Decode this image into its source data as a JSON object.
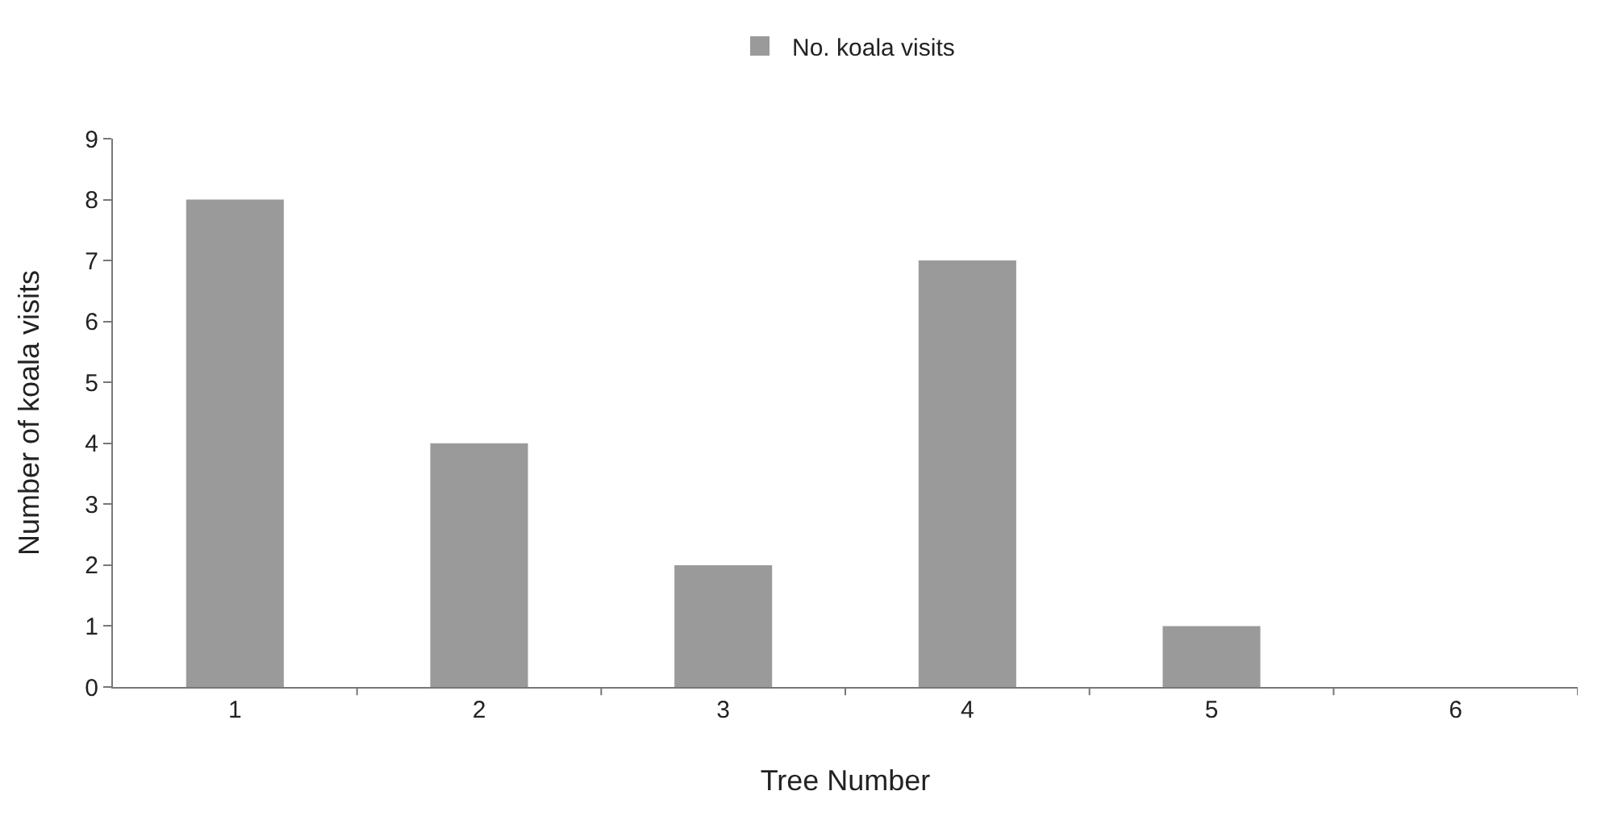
{
  "chart_data": {
    "type": "bar",
    "xlabel": "Tree Number",
    "ylabel": "Number of koala visits",
    "categories": [
      "1",
      "2",
      "3",
      "4",
      "5",
      "6"
    ],
    "series": [
      {
        "name": "No. koala visits",
        "color": "#9a9a9a",
        "values": [
          8,
          4,
          2,
          7,
          1,
          0
        ]
      }
    ],
    "ylim": [
      0,
      9
    ],
    "yticks": [
      0,
      1,
      2,
      3,
      4,
      5,
      6,
      7,
      8,
      9
    ],
    "grid": false,
    "legend": "top"
  }
}
